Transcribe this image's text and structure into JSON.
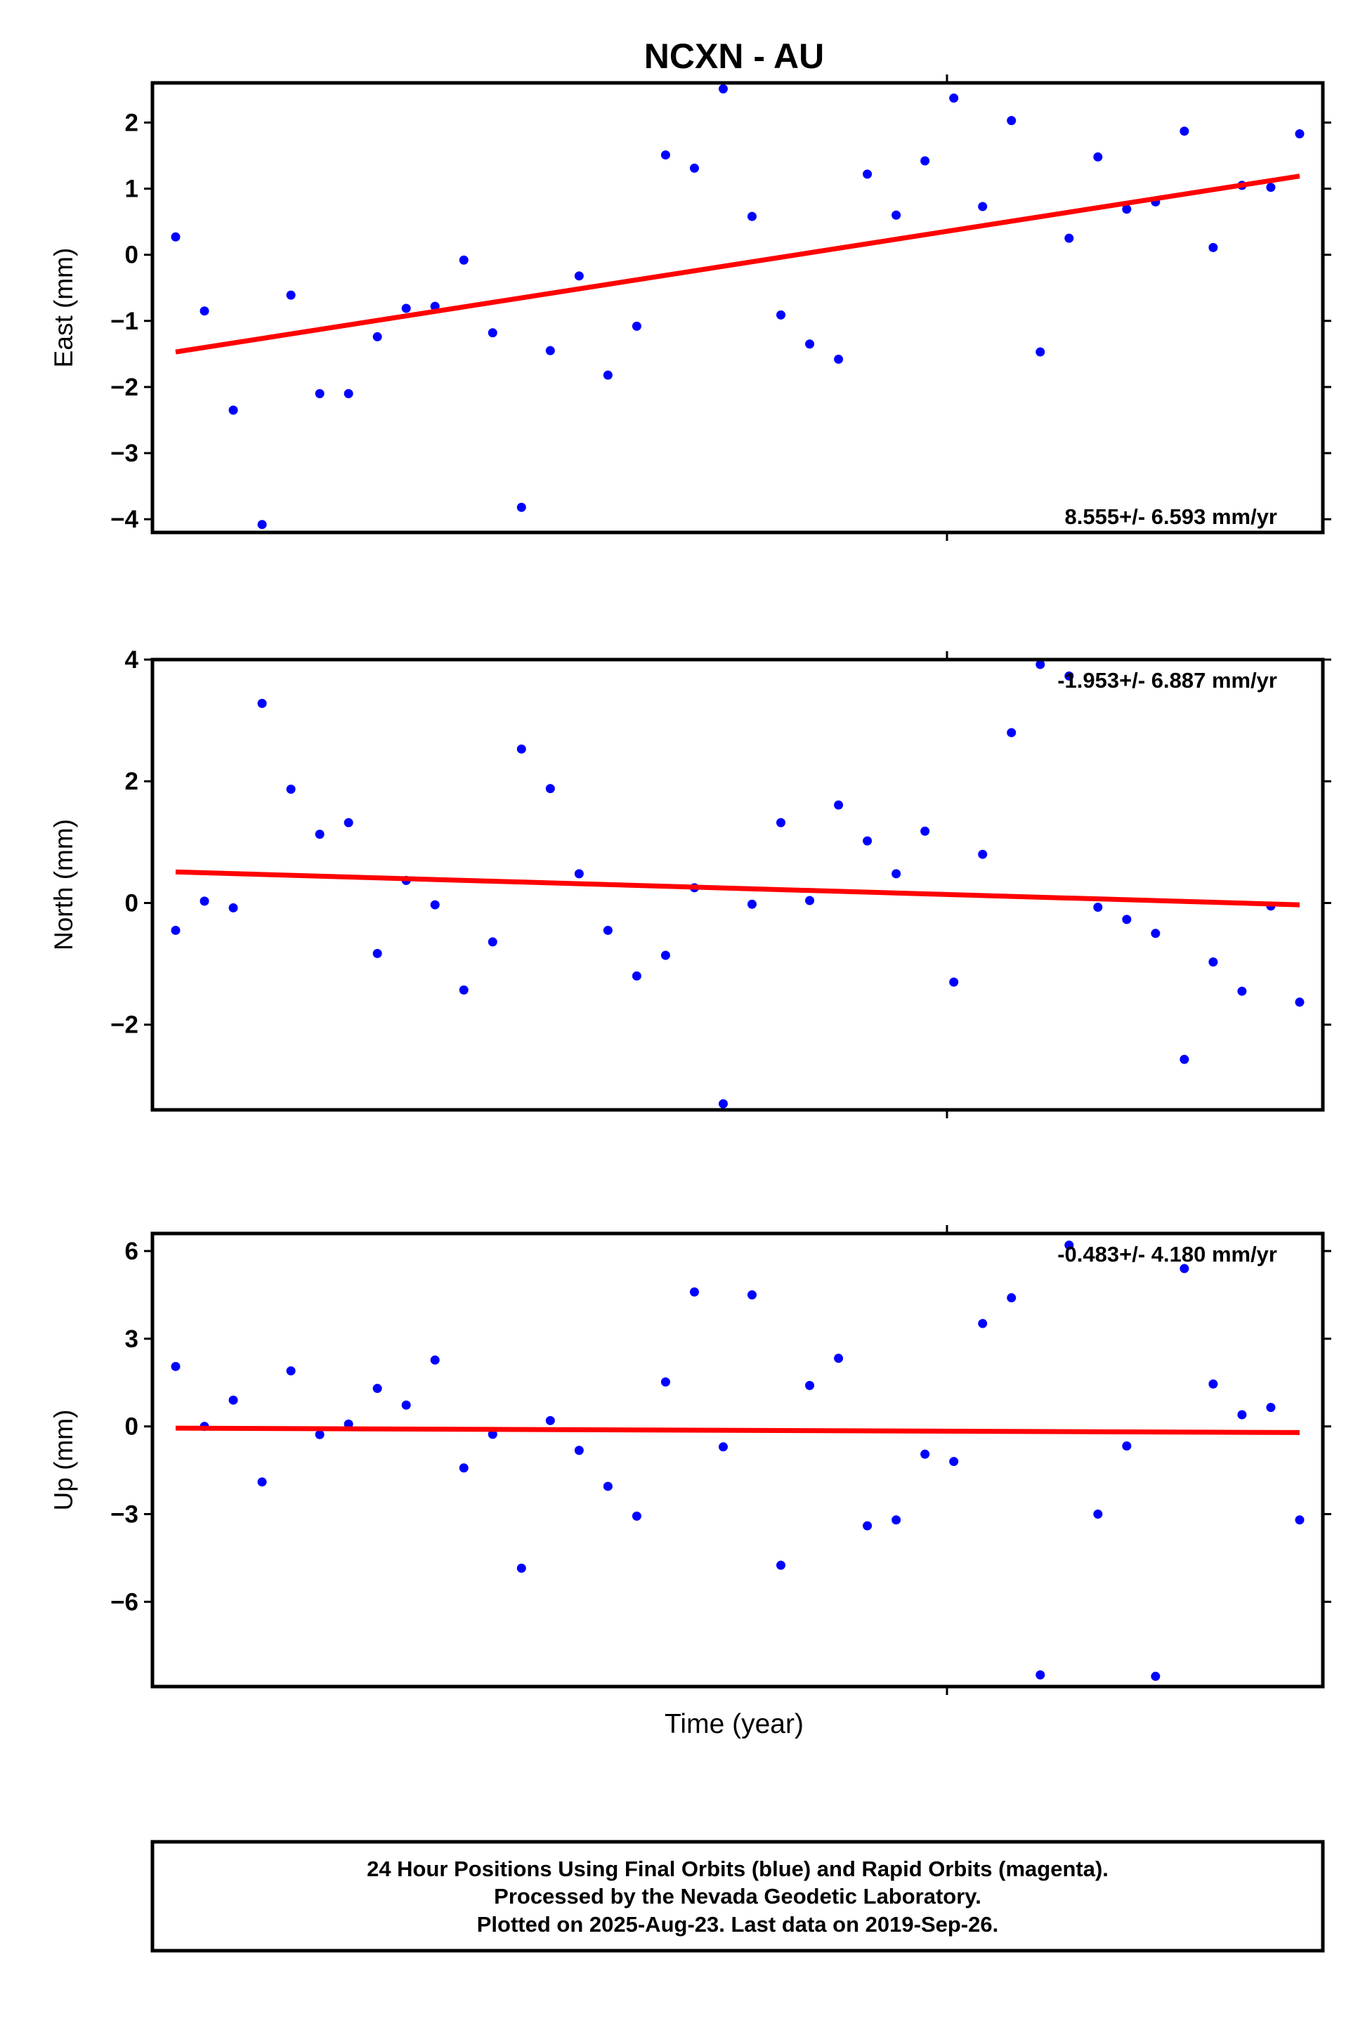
{
  "chart_data": {
    "title": "NCXN - AU",
    "xlabel": "Time (year)",
    "panels": [
      {
        "name": "east",
        "type": "scatter",
        "ylabel": "East (mm)",
        "rate": "8.555+/- 6.593 mm/yr",
        "ylim": [
          -4.2,
          2.6
        ],
        "yticks": [
          2,
          1,
          0,
          -1,
          -2,
          -3,
          -4
        ],
        "ytick_labels": [
          "2",
          "1",
          "0",
          "−1",
          "−2",
          "−3",
          "−4"
        ],
        "points": [
          0.27,
          -0.85,
          -2.35,
          -4.08,
          -0.61,
          -2.1,
          -2.1,
          -1.24,
          -0.81,
          -0.78,
          -0.08,
          -1.18,
          -3.82,
          -1.45,
          -0.32,
          -1.82,
          -1.08,
          1.51,
          1.31,
          2.51,
          0.58,
          -0.91,
          -1.35,
          -1.58,
          1.22,
          0.6,
          1.42,
          2.37,
          0.73,
          2.03,
          -1.47,
          0.25,
          1.48,
          0.69,
          0.8,
          1.87,
          0.11,
          1.05,
          1.02,
          1.83
        ],
        "trend": [
          -1.47,
          1.19
        ]
      },
      {
        "name": "north",
        "type": "scatter",
        "ylabel": "North (mm)",
        "rate": "-1.953+/- 6.887 mm/yr",
        "ylim": [
          -3.4,
          4.0
        ],
        "yticks": [
          4,
          2,
          0,
          -2
        ],
        "ytick_labels": [
          "4",
          "2",
          "0",
          "−2"
        ],
        "points": [
          -0.45,
          0.03,
          -0.08,
          3.28,
          1.87,
          1.13,
          1.32,
          -0.83,
          0.37,
          -0.03,
          -1.43,
          -0.64,
          2.53,
          1.88,
          0.48,
          -0.45,
          -1.2,
          -0.86,
          0.25,
          -3.3,
          -0.02,
          1.32,
          0.04,
          1.61,
          1.02,
          0.48,
          1.18,
          -1.3,
          0.8,
          2.8,
          3.92,
          3.73,
          -0.07,
          -0.27,
          -0.5,
          -2.57,
          -0.97,
          -1.45,
          -0.05,
          -1.63
        ],
        "trend": [
          0.51,
          -0.03
        ]
      },
      {
        "name": "up",
        "type": "scatter",
        "ylabel": "Up (mm)",
        "rate": "-0.483+/- 4.180 mm/yr",
        "ylim": [
          -8.9,
          6.6
        ],
        "yticks": [
          6,
          3,
          0,
          -3,
          -6
        ],
        "ytick_labels": [
          "6",
          "3",
          "0",
          "−3",
          "−6"
        ],
        "points": [
          2.05,
          0.0,
          0.9,
          -1.9,
          1.9,
          -0.28,
          0.08,
          1.3,
          0.73,
          2.27,
          -1.42,
          -0.27,
          -4.85,
          0.2,
          -0.82,
          -2.05,
          -3.07,
          1.52,
          4.6,
          -0.7,
          4.5,
          -4.75,
          1.4,
          2.33,
          -3.4,
          -3.2,
          -0.95,
          -1.2,
          3.52,
          4.4,
          -8.5,
          6.2,
          -3.0,
          -0.67,
          -8.55,
          5.4,
          1.45,
          0.4,
          0.65,
          -3.2
        ],
        "trend": [
          -0.06,
          -0.21
        ]
      }
    ],
    "footer": {
      "line1": "24 Hour Positions Using Final Orbits (blue) and Rapid Orbits (magenta).",
      "line2": "Processed by the Nevada Geodetic Laboratory.",
      "line3": "Plotted on 2025-Aug-23. Last data on 2019-Sep-26."
    },
    "colors": {
      "final_orbit_points": "#0000ff",
      "trend_line": "#ff0000",
      "frame": "#000000"
    }
  }
}
